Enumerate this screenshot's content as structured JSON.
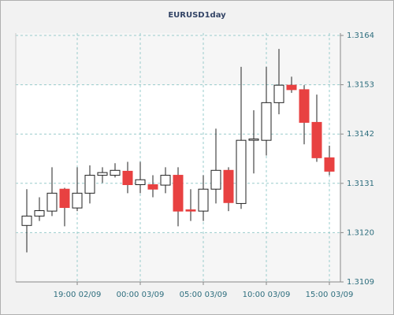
{
  "chart_data": {
    "type": "candlestick",
    "title": "EURUSD1day",
    "categories": [
      null,
      null,
      null,
      null,
      "19:00 02/09",
      null,
      null,
      null,
      null,
      "00:00 03/09",
      null,
      null,
      null,
      null,
      "05:00 03/09",
      null,
      null,
      null,
      null,
      "10:00 03/09",
      null,
      null,
      null,
      null,
      "15:00 03/09"
    ],
    "open": [
      1.31216,
      1.31237,
      1.31248,
      1.31297,
      1.31255,
      1.31288,
      1.31328,
      1.31328,
      1.31337,
      1.31307,
      1.31307,
      1.31306,
      1.31328,
      1.31251,
      1.31248,
      1.31297,
      1.31339,
      1.31265,
      1.31406,
      1.31406,
      1.3149,
      1.31529,
      1.31519,
      1.31446,
      1.31367
    ],
    "high": [
      1.31297,
      1.31279,
      1.31346,
      1.313,
      1.31346,
      1.3135,
      1.31346,
      1.31355,
      1.31358,
      1.31358,
      1.31328,
      1.31346,
      1.31346,
      1.31297,
      1.31328,
      1.31432,
      1.31346,
      1.3157,
      1.31473,
      1.3157,
      1.3161,
      1.31548,
      1.31529,
      1.31508,
      1.31394
    ],
    "low": [
      1.31156,
      1.31226,
      1.31237,
      1.31214,
      1.31248,
      1.31265,
      1.31311,
      1.31323,
      1.31288,
      1.31288,
      1.31279,
      1.31288,
      1.31214,
      1.31226,
      1.31226,
      1.31265,
      1.31248,
      1.31253,
      1.31332,
      1.31372,
      1.31464,
      1.31512,
      1.31397,
      1.31358,
      1.31328
    ],
    "close": [
      1.31237,
      1.31249,
      1.31288,
      1.31256,
      1.31288,
      1.31328,
      1.31334,
      1.31339,
      1.31307,
      1.31318,
      1.31297,
      1.31328,
      1.31248,
      1.31248,
      1.31297,
      1.31339,
      1.31267,
      1.31406,
      1.31409,
      1.3149,
      1.31529,
      1.31519,
      1.31446,
      1.31367,
      1.31337
    ],
    "up_color": "#ffffff",
    "down_color": "#e84141",
    "ylim": [
      1.3109,
      1.3164
    ],
    "yticks": [
      {
        "value": 1.3109,
        "label": "1.3109"
      },
      {
        "value": 1.312,
        "label": "1.3120"
      },
      1.3131,
      1.3142,
      1.3153,
      1.3164
    ],
    "grid": true
  }
}
